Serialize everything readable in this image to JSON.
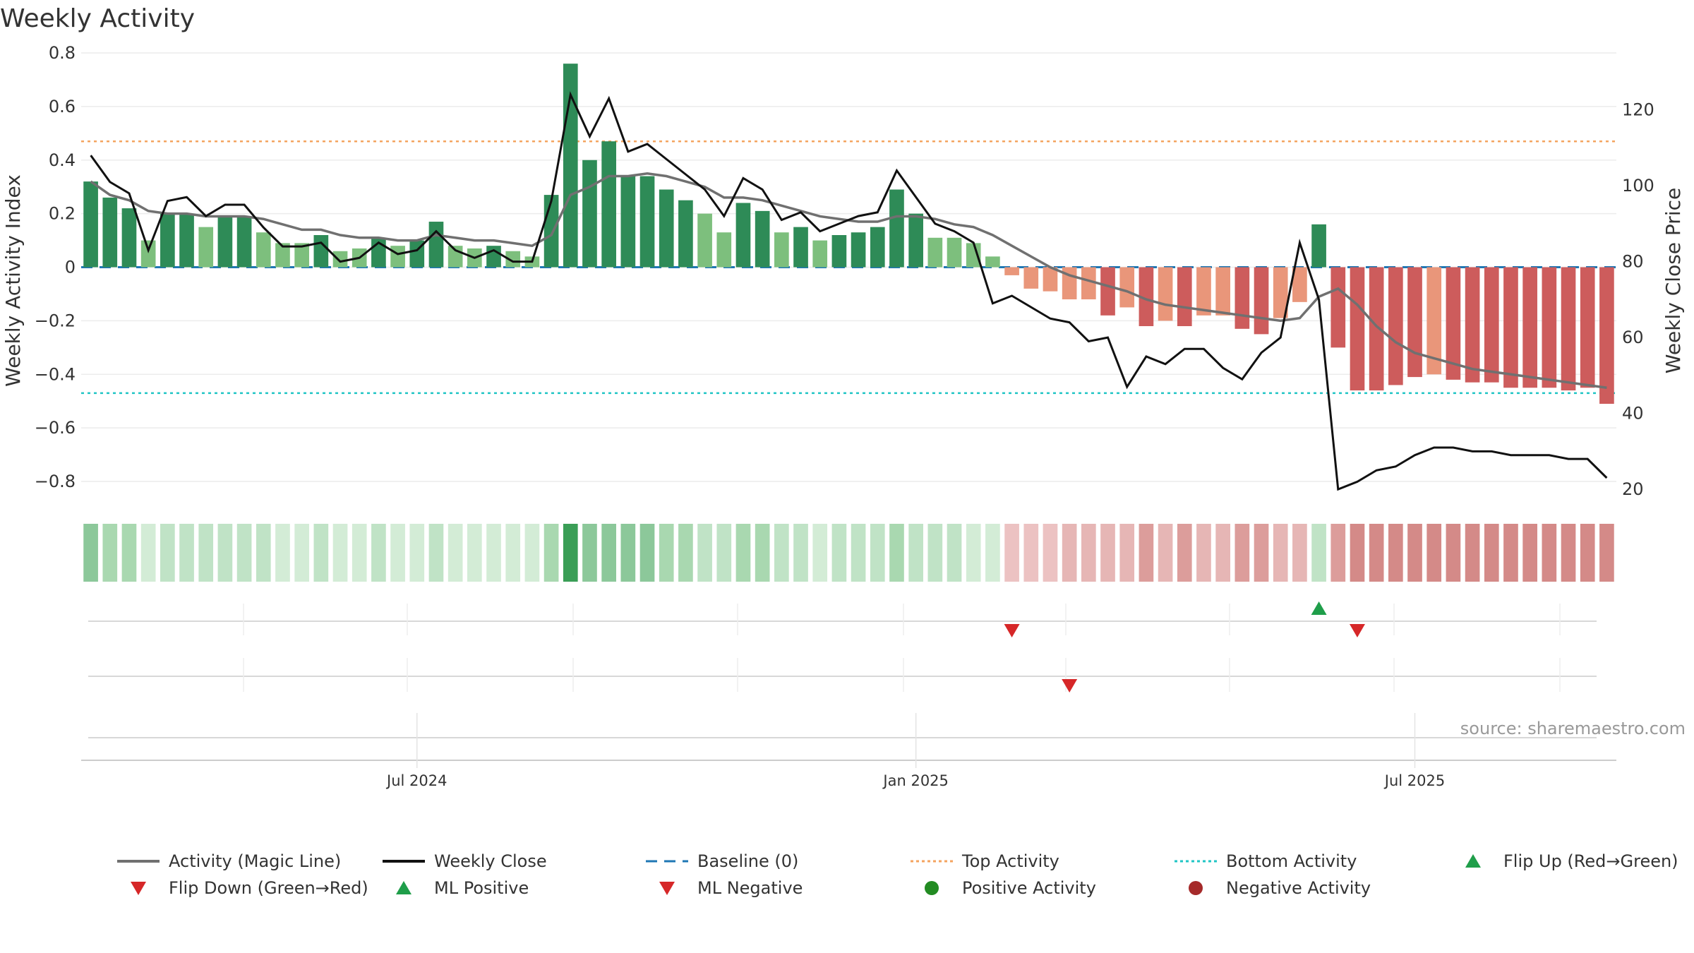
{
  "chart_data": {
    "type": "bar",
    "title": "Weekly Activity",
    "ylabel_left": "Weekly Activity Index",
    "ylabel_right": "Weekly Close Price",
    "left_axis": {
      "min": -0.9,
      "max": 0.8,
      "ticks": [
        -0.8,
        -0.6,
        -0.4,
        -0.2,
        0,
        0.2,
        0.4,
        0.6,
        0.8
      ],
      "tick_labels": [
        "−0.8",
        "−0.6",
        "−0.4",
        "−0.2",
        "0",
        "0.2",
        "0.4",
        "0.6",
        "0.8"
      ]
    },
    "right_axis": {
      "min": 15,
      "max": 135,
      "ticks": [
        20,
        40,
        60,
        80,
        100,
        120
      ],
      "tick_labels": [
        "20",
        "40",
        "60",
        "80",
        "100",
        "120"
      ]
    },
    "x_ticks": [
      {
        "index": 17.5,
        "label": "Jul 2024"
      },
      {
        "index": 43.5,
        "label": "Jan 2025"
      },
      {
        "index": 69.5,
        "label": "Jul 2025"
      }
    ],
    "top_activity": 0.47,
    "bottom_activity": -0.47,
    "baseline": 0,
    "activity": [
      0.32,
      0.26,
      0.22,
      0.1,
      0.2,
      0.2,
      0.15,
      0.19,
      0.19,
      0.13,
      0.09,
      0.09,
      0.12,
      0.06,
      0.07,
      0.11,
      0.08,
      0.1,
      0.17,
      0.08,
      0.07,
      0.08,
      0.06,
      0.04,
      0.27,
      0.76,
      0.4,
      0.47,
      0.34,
      0.34,
      0.29,
      0.25,
      0.2,
      0.13,
      0.24,
      0.21,
      0.13,
      0.15,
      0.1,
      0.12,
      0.13,
      0.15,
      0.29,
      0.2,
      0.11,
      0.11,
      0.09,
      0.04,
      -0.03,
      -0.08,
      -0.09,
      -0.12,
      -0.12,
      -0.18,
      -0.15,
      -0.22,
      -0.2,
      -0.22,
      -0.18,
      -0.18,
      -0.23,
      -0.25,
      -0.19,
      -0.13,
      0.16,
      -0.3,
      -0.46,
      -0.46,
      -0.44,
      -0.41,
      -0.4,
      -0.42,
      -0.43,
      -0.43,
      -0.45,
      -0.45,
      -0.45,
      -0.46,
      -0.45,
      -0.51
    ],
    "strength": [
      3,
      2,
      2,
      1,
      2,
      2,
      1,
      2,
      2,
      1,
      1,
      1,
      2,
      1,
      1,
      2,
      1,
      2,
      2,
      1,
      1,
      2,
      1,
      1,
      3,
      3,
      2,
      3,
      2,
      3,
      2,
      2,
      1,
      1,
      2,
      2,
      1,
      2,
      1,
      2,
      2,
      2,
      3,
      2,
      1,
      1,
      1,
      1,
      0,
      1,
      1,
      1,
      1,
      2,
      1,
      2,
      1,
      2,
      1,
      1,
      2,
      2,
      1,
      1,
      2,
      3,
      3,
      3,
      2,
      2,
      1,
      2,
      2,
      2,
      3,
      3,
      3,
      3,
      3,
      3
    ],
    "magic_line": [
      0.32,
      0.27,
      0.25,
      0.21,
      0.2,
      0.2,
      0.19,
      0.19,
      0.19,
      0.18,
      0.16,
      0.14,
      0.14,
      0.12,
      0.11,
      0.11,
      0.1,
      0.1,
      0.12,
      0.11,
      0.1,
      0.1,
      0.09,
      0.08,
      0.12,
      0.27,
      0.3,
      0.34,
      0.34,
      0.35,
      0.34,
      0.32,
      0.3,
      0.26,
      0.26,
      0.25,
      0.23,
      0.21,
      0.19,
      0.18,
      0.17,
      0.17,
      0.19,
      0.19,
      0.18,
      0.16,
      0.15,
      0.12,
      0.08,
      0.04,
      0.0,
      -0.03,
      -0.05,
      -0.07,
      -0.09,
      -0.12,
      -0.14,
      -0.15,
      -0.16,
      -0.17,
      -0.18,
      -0.19,
      -0.2,
      -0.19,
      -0.11,
      -0.08,
      -0.14,
      -0.22,
      -0.28,
      -0.32,
      -0.34,
      -0.36,
      -0.38,
      -0.39,
      -0.4,
      -0.41,
      -0.42,
      -0.43,
      -0.44,
      -0.45
    ],
    "weekly_close": [
      108,
      101,
      98,
      83,
      96,
      97,
      92,
      95,
      95,
      89,
      84,
      84,
      85,
      80,
      81,
      85,
      82,
      83,
      88,
      83,
      81,
      83,
      80,
      80,
      96,
      124,
      113,
      123,
      109,
      111,
      107,
      103,
      99,
      92,
      102,
      99,
      91,
      93,
      88,
      90,
      92,
      93,
      104,
      97,
      90,
      88,
      85,
      69,
      71,
      68,
      65,
      64,
      59,
      60,
      47,
      55,
      53,
      57,
      57,
      52,
      49,
      56,
      60,
      85,
      70,
      20,
      22,
      25,
      26,
      29,
      31,
      31,
      30,
      30,
      29,
      29,
      29,
      28,
      28,
      23
    ],
    "flip_up": [
      64
    ],
    "flip_down": [
      48,
      66
    ],
    "ml_negative": [
      51
    ],
    "source": "source: sharemaestro.com",
    "legend": [
      "Activity (Magic Line)",
      "Weekly Close",
      "Baseline (0)",
      "Top Activity",
      "Bottom Activity",
      "Flip Up (Red→Green)",
      "Flip Down (Green→Red)",
      "ML Positive",
      "ML Negative",
      "Positive Activity",
      "Negative Activity"
    ],
    "colors": {
      "pos_strong": "#2e8b57",
      "pos_weak": "#7dbf7d",
      "neg_strong": "#cd5c5c",
      "neg_weak": "#e9967a",
      "magic_line": "#707070",
      "weekly_close": "#111111",
      "baseline": "#1f77b4",
      "top": "#f4a460",
      "bottom": "#20c5c5",
      "flip_up": "#1f9e4a",
      "flip_down": "#d62728",
      "pos_dot": "#228b22",
      "neg_dot": "#a52a2a"
    }
  }
}
